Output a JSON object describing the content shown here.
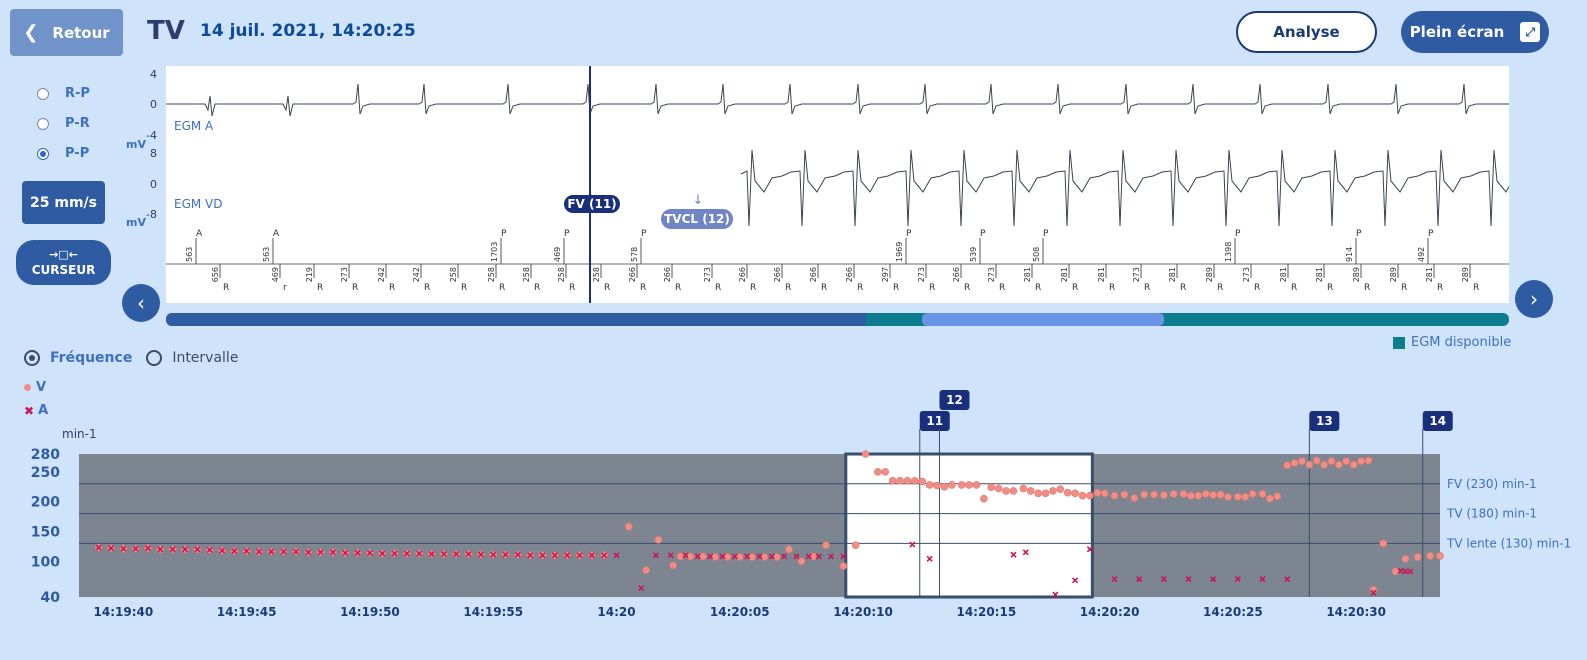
{
  "header": {
    "back_label": "Retour",
    "title": "TV",
    "datetime": "14 juil. 2021, 14:20:25",
    "analyse_label": "Analyse",
    "fullscreen_label": "Plein écran"
  },
  "interval_options": [
    "R-P",
    "P-R",
    "P-P"
  ],
  "interval_selected": "P-P",
  "speed_label": "25 mm/s",
  "cursor_label": "CURSEUR",
  "egm": {
    "unit": "mV",
    "channel_a": {
      "label": "EGM A",
      "ticks": [
        "4",
        "0",
        "-4"
      ]
    },
    "channel_v": {
      "label": "EGM VD",
      "ticks": [
        "8",
        "0",
        "-8"
      ]
    },
    "marker_fv": "FV (11)",
    "marker_tvcl": "TVCL (12)",
    "top_markers": [
      {
        "v": "563",
        "t": "A"
      },
      {
        "v": "563",
        "t": "A"
      },
      {
        "v": "1703",
        "t": "P"
      },
      {
        "v": "469",
        "t": "P"
      },
      {
        "v": "578",
        "t": "P"
      },
      {
        "v": "1969",
        "t": "P"
      },
      {
        "v": "539",
        "t": "P"
      },
      {
        "v": "508",
        "t": "P"
      },
      {
        "v": "1398",
        "t": "P"
      },
      {
        "v": "914",
        "t": "P"
      },
      {
        "v": "492",
        "t": "P"
      }
    ],
    "bottom_markers": [
      "656",
      "469",
      "219",
      "273",
      "242",
      "242",
      "258",
      "258",
      "258",
      "258",
      "258",
      "266",
      "266",
      "273",
      "266",
      "266",
      "266",
      "266",
      "297",
      "273",
      "266",
      "273",
      "281",
      "281",
      "281",
      "273",
      "281",
      "289",
      "273",
      "281",
      "281",
      "289",
      "289",
      "281",
      "289"
    ],
    "bottom_suffixes": [
      "R",
      "r",
      "R",
      "R",
      "R",
      "R",
      "R",
      "R",
      "R",
      "R",
      "R",
      "R",
      "R",
      "R",
      "R",
      "R",
      "R",
      "R",
      "R",
      "R",
      "R",
      "R",
      "R",
      "R",
      "R",
      "R",
      "R",
      "R",
      "R",
      "R",
      "R",
      "R",
      "R",
      "R",
      "R"
    ]
  },
  "timeline_legend": "EGM disponible",
  "view_modes": [
    "Fréquence",
    "Intervalle"
  ],
  "view_selected": "Fréquence",
  "legend": {
    "v": "V",
    "a": "A"
  },
  "colors": {
    "v_points": "#f08e85",
    "a_points": "#c7185a",
    "plot_bg": "#7d8690",
    "window_bg": "#ffffff",
    "accent": "#2f5ba3"
  },
  "chart_data": {
    "type": "scatter",
    "ylabel": "min-1",
    "yticks": [
      40,
      100,
      150,
      200,
      250,
      280
    ],
    "ylim": [
      40,
      280
    ],
    "xticks": [
      {
        "t": 1,
        "label": "14:19:40"
      },
      {
        "t": 6,
        "label": "14:19:45"
      },
      {
        "t": 11,
        "label": "14:19:50"
      },
      {
        "t": 16,
        "label": "14:19:55"
      },
      {
        "t": 21,
        "label": "14:20"
      },
      {
        "t": 26,
        "label": "14:20:05"
      },
      {
        "t": 31,
        "label": "14:20:10"
      },
      {
        "t": 36,
        "label": "14:20:15"
      },
      {
        "t": 41,
        "label": "14:20:20"
      },
      {
        "t": 46,
        "label": "14:20:25"
      },
      {
        "t": 51,
        "label": "14:20:30"
      }
    ],
    "xlim": [
      -0.8,
      54.4
    ],
    "zones": [
      {
        "label": "FV (230) min-1",
        "y": 230
      },
      {
        "label": "TV (180) min-1",
        "y": 180
      },
      {
        "label": "TV lente (130) min-1",
        "y": 130
      }
    ],
    "episodes": [
      {
        "label": "11",
        "t": 33.3
      },
      {
        "label": "12",
        "t": 34.1
      },
      {
        "label": "13",
        "t": 49.1
      },
      {
        "label": "14",
        "t": 53.7
      }
    ],
    "egm_window": [
      30.3,
      40.3
    ],
    "series": [
      {
        "name": "V",
        "points": [
          [
            0,
            123
          ],
          [
            0.5,
            122
          ],
          [
            1,
            121
          ],
          [
            1.5,
            121
          ],
          [
            2,
            122
          ],
          [
            2.5,
            120
          ],
          [
            3,
            120
          ],
          [
            3.5,
            120
          ],
          [
            4,
            120
          ],
          [
            4.5,
            119
          ],
          [
            5,
            118
          ],
          [
            5.5,
            117
          ],
          [
            6,
            117
          ],
          [
            6.5,
            116
          ],
          [
            7,
            116
          ],
          [
            7.5,
            116
          ],
          [
            8,
            116
          ],
          [
            8.5,
            115
          ],
          [
            9,
            115
          ],
          [
            9.5,
            115
          ],
          [
            10,
            114
          ],
          [
            10.5,
            114
          ],
          [
            11,
            114
          ],
          [
            11.5,
            113
          ],
          [
            12,
            113
          ],
          [
            12.5,
            113
          ],
          [
            13,
            113
          ],
          [
            13.5,
            112
          ],
          [
            14,
            112
          ],
          [
            14.5,
            112
          ],
          [
            15,
            112
          ],
          [
            15.5,
            111
          ],
          [
            16,
            111
          ],
          [
            16.5,
            111
          ],
          [
            17,
            111
          ],
          [
            17.5,
            110
          ],
          [
            18,
            110
          ],
          [
            18.5,
            110
          ],
          [
            19,
            110
          ],
          [
            19.5,
            110
          ],
          [
            20,
            110
          ],
          [
            20.5,
            110
          ],
          [
            21.5,
            158
          ],
          [
            22.2,
            85
          ],
          [
            22.7,
            136
          ],
          [
            23.3,
            93
          ],
          [
            23.6,
            108
          ],
          [
            24,
            108
          ],
          [
            24.5,
            108
          ],
          [
            25,
            107
          ],
          [
            25.5,
            107
          ],
          [
            26,
            107
          ],
          [
            26.5,
            107
          ],
          [
            27,
            107
          ],
          [
            27.5,
            107
          ],
          [
            28,
            120
          ],
          [
            28.5,
            100
          ],
          [
            29,
            108
          ],
          [
            29.5,
            127
          ],
          [
            30.2,
            92
          ],
          [
            30.7,
            127
          ],
          [
            31.1,
            280
          ],
          [
            31.6,
            250
          ],
          [
            31.9,
            250
          ],
          [
            32.2,
            235
          ],
          [
            32.5,
            235
          ],
          [
            32.8,
            235
          ],
          [
            33.1,
            235
          ],
          [
            33.4,
            234
          ],
          [
            33.7,
            228
          ],
          [
            34,
            227
          ],
          [
            34.3,
            225
          ],
          [
            34.6,
            228
          ],
          [
            35,
            228
          ],
          [
            35.3,
            228
          ],
          [
            35.6,
            228
          ],
          [
            35.9,
            205
          ],
          [
            36.2,
            224
          ],
          [
            36.5,
            222
          ],
          [
            36.8,
            218
          ],
          [
            37.1,
            218
          ],
          [
            37.5,
            222
          ],
          [
            37.8,
            218
          ],
          [
            38.1,
            214
          ],
          [
            38.4,
            214
          ],
          [
            38.7,
            218
          ],
          [
            39,
            221
          ],
          [
            39.3,
            215
          ],
          [
            39.6,
            214
          ],
          [
            39.9,
            210
          ],
          [
            40.2,
            210
          ],
          [
            40.5,
            215
          ],
          [
            40.8,
            214
          ],
          [
            41.2,
            210
          ],
          [
            41.6,
            212
          ],
          [
            42,
            206
          ],
          [
            42.4,
            212
          ],
          [
            42.8,
            212
          ],
          [
            43.2,
            211
          ],
          [
            43.6,
            213
          ],
          [
            44,
            213
          ],
          [
            44.3,
            210
          ],
          [
            44.6,
            210
          ],
          [
            44.9,
            213
          ],
          [
            45.2,
            211
          ],
          [
            45.5,
            212
          ],
          [
            45.8,
            208
          ],
          [
            46.2,
            208
          ],
          [
            46.5,
            208
          ],
          [
            46.8,
            213
          ],
          [
            47.2,
            213
          ],
          [
            47.5,
            205
          ],
          [
            47.8,
            209
          ],
          [
            48.2,
            261
          ],
          [
            48.5,
            265
          ],
          [
            48.8,
            268
          ],
          [
            49.1,
            262
          ],
          [
            49.4,
            269
          ],
          [
            49.7,
            262
          ],
          [
            50,
            268
          ],
          [
            50.3,
            262
          ],
          [
            50.6,
            268
          ],
          [
            50.9,
            262
          ],
          [
            51.2,
            268
          ],
          [
            51.5,
            269
          ],
          [
            51.7,
            52
          ],
          [
            52.1,
            130
          ],
          [
            52.6,
            83
          ],
          [
            53,
            104
          ],
          [
            53.5,
            107
          ],
          [
            54,
            109
          ],
          [
            54.4,
            109
          ]
        ]
      },
      {
        "name": "A",
        "points": [
          [
            0,
            123
          ],
          [
            0.5,
            122
          ],
          [
            1,
            121
          ],
          [
            1.5,
            121
          ],
          [
            2,
            122
          ],
          [
            2.5,
            120
          ],
          [
            3,
            120
          ],
          [
            3.5,
            120
          ],
          [
            4,
            120
          ],
          [
            4.5,
            119
          ],
          [
            5,
            118
          ],
          [
            5.5,
            117
          ],
          [
            6,
            117
          ],
          [
            6.5,
            116
          ],
          [
            7,
            116
          ],
          [
            7.5,
            116
          ],
          [
            8,
            116
          ],
          [
            8.5,
            115
          ],
          [
            9,
            115
          ],
          [
            9.5,
            115
          ],
          [
            10,
            114
          ],
          [
            10.5,
            114
          ],
          [
            11,
            114
          ],
          [
            11.5,
            113
          ],
          [
            12,
            113
          ],
          [
            12.5,
            113
          ],
          [
            13,
            113
          ],
          [
            13.5,
            112
          ],
          [
            14,
            112
          ],
          [
            14.5,
            112
          ],
          [
            15,
            112
          ],
          [
            15.5,
            111
          ],
          [
            16,
            111
          ],
          [
            16.5,
            111
          ],
          [
            17,
            111
          ],
          [
            17.5,
            110
          ],
          [
            18,
            110
          ],
          [
            18.5,
            110
          ],
          [
            19,
            110
          ],
          [
            19.5,
            110
          ],
          [
            20,
            110
          ],
          [
            20.5,
            110
          ],
          [
            21,
            110
          ],
          [
            22,
            55
          ],
          [
            22.6,
            110
          ],
          [
            23.2,
            110
          ],
          [
            23.8,
            110
          ],
          [
            24.3,
            108
          ],
          [
            24.8,
            108
          ],
          [
            25.3,
            108
          ],
          [
            25.8,
            108
          ],
          [
            26.3,
            108
          ],
          [
            26.8,
            108
          ],
          [
            27.3,
            108
          ],
          [
            27.8,
            108
          ],
          [
            28.3,
            108
          ],
          [
            28.8,
            108
          ],
          [
            29.2,
            108
          ],
          [
            29.7,
            108
          ],
          [
            30.2,
            108
          ],
          [
            33,
            128
          ],
          [
            33.7,
            104
          ],
          [
            37.1,
            111
          ],
          [
            37.6,
            115
          ],
          [
            38.8,
            44
          ],
          [
            39.6,
            68
          ],
          [
            40.2,
            120
          ],
          [
            41.2,
            70
          ],
          [
            42.2,
            70
          ],
          [
            43.2,
            70
          ],
          [
            44.2,
            70
          ],
          [
            45.2,
            70
          ],
          [
            46.2,
            70
          ],
          [
            47.2,
            70
          ],
          [
            48.2,
            70
          ],
          [
            51.7,
            47
          ],
          [
            52.8,
            84
          ],
          [
            53,
            83
          ],
          [
            53.2,
            83
          ]
        ]
      }
    ]
  }
}
